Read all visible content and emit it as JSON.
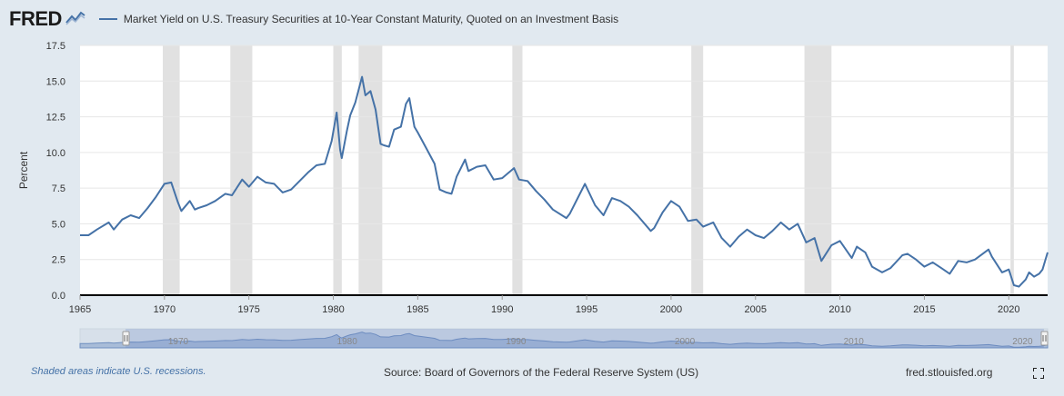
{
  "header": {
    "logo_text": "FRED",
    "legend_label": "Market Yield on U.S. Treasury Securities at 10-Year Constant Maturity, Quoted on an Investment Basis"
  },
  "footer": {
    "recession_note": "Shaded areas indicate U.S. recessions.",
    "source": "Source: Board of Governors of the Federal Reserve System (US)",
    "site": "fred.stlouisfed.org"
  },
  "colors": {
    "series": "#4572a7",
    "recession": "#e1e1e1",
    "background": "#e1e9f0",
    "plot_bg": "#ffffff",
    "navigator_fill": "#a8bcd8"
  },
  "icons": [
    "fred-graph-icon",
    "fullscreen-icon",
    "navigator-handle-icon"
  ],
  "chart_data": {
    "type": "line",
    "title": "Market Yield on U.S. Treasury Securities at 10-Year Constant Maturity, Quoted on an Investment Basis",
    "xlabel": "",
    "ylabel": "Percent",
    "xlim": [
      1965,
      2022.3
    ],
    "ylim": [
      0,
      17.5
    ],
    "x_ticks": [
      1965,
      1970,
      1975,
      1980,
      1985,
      1990,
      1995,
      2000,
      2005,
      2010,
      2015,
      2020
    ],
    "y_ticks": [
      "0.0",
      "2.5",
      "5.0",
      "7.5",
      "10.0",
      "12.5",
      "15.0",
      "17.5"
    ],
    "recessions": [
      [
        1969.9,
        1970.9
      ],
      [
        1973.9,
        1975.2
      ],
      [
        1980.0,
        1980.5
      ],
      [
        1981.5,
        1982.9
      ],
      [
        1990.6,
        1991.2
      ],
      [
        2001.2,
        2001.9
      ],
      [
        2007.9,
        2009.5
      ],
      [
        2020.1,
        2020.3
      ]
    ],
    "navigator_labels": [
      "1970",
      "1980",
      "1990",
      "2000",
      "2010",
      "2020"
    ],
    "series": [
      {
        "name": "Market Yield on U.S. Treasury Securities at 10-Year Constant Maturity, Quoted on an Investment Basis",
        "x": [
          1965.0,
          1965.5,
          1966.0,
          1966.7,
          1967.0,
          1967.5,
          1968.0,
          1968.5,
          1969.0,
          1969.5,
          1970.0,
          1970.4,
          1970.8,
          1971.0,
          1971.5,
          1971.8,
          1972.0,
          1972.5,
          1973.0,
          1973.6,
          1974.0,
          1974.6,
          1975.0,
          1975.5,
          1976.0,
          1976.5,
          1977.0,
          1977.5,
          1978.0,
          1978.5,
          1979.0,
          1979.5,
          1979.9,
          1980.2,
          1980.4,
          1980.5,
          1980.8,
          1981.0,
          1981.3,
          1981.7,
          1981.9,
          1982.2,
          1982.5,
          1982.8,
          1983.0,
          1983.3,
          1983.6,
          1984.0,
          1984.3,
          1984.5,
          1984.8,
          1985.0,
          1985.5,
          1986.0,
          1986.3,
          1986.7,
          1987.0,
          1987.3,
          1987.8,
          1988.0,
          1988.5,
          1989.0,
          1989.5,
          1990.0,
          1990.7,
          1991.0,
          1991.5,
          1992.0,
          1992.5,
          1993.0,
          1993.8,
          1994.0,
          1994.9,
          1995.5,
          1996.0,
          1996.5,
          1997.0,
          1997.5,
          1998.0,
          1998.8,
          1999.0,
          1999.5,
          2000.0,
          2000.5,
          2001.0,
          2001.5,
          2001.9,
          2002.5,
          2003.0,
          2003.5,
          2004.0,
          2004.5,
          2005.0,
          2005.5,
          2006.0,
          2006.5,
          2007.0,
          2007.5,
          2008.0,
          2008.5,
          2008.9,
          2009.5,
          2010.0,
          2010.7,
          2011.0,
          2011.5,
          2011.9,
          2012.5,
          2013.0,
          2013.7,
          2014.0,
          2014.5,
          2015.0,
          2015.5,
          2016.0,
          2016.5,
          2017.0,
          2017.5,
          2018.0,
          2018.8,
          2019.0,
          2019.6,
          2020.0,
          2020.3,
          2020.6,
          2021.0,
          2021.2,
          2021.5,
          2021.8,
          2022.0,
          2022.3
        ],
        "y": [
          4.2,
          4.2,
          4.6,
          5.1,
          4.6,
          5.3,
          5.6,
          5.4,
          6.1,
          6.9,
          7.8,
          7.9,
          6.5,
          5.9,
          6.6,
          6.0,
          6.1,
          6.3,
          6.6,
          7.1,
          7.0,
          8.1,
          7.6,
          8.3,
          7.9,
          7.8,
          7.2,
          7.4,
          8.0,
          8.6,
          9.1,
          9.2,
          10.8,
          12.8,
          10.2,
          9.6,
          11.5,
          12.6,
          13.5,
          15.3,
          14.0,
          14.3,
          13.0,
          10.6,
          10.5,
          10.4,
          11.6,
          11.8,
          13.4,
          13.8,
          11.8,
          11.4,
          10.3,
          9.2,
          7.4,
          7.2,
          7.1,
          8.3,
          9.5,
          8.7,
          9.0,
          9.1,
          8.1,
          8.2,
          8.9,
          8.1,
          8.0,
          7.3,
          6.7,
          6.0,
          5.4,
          5.7,
          7.8,
          6.3,
          5.6,
          6.8,
          6.6,
          6.2,
          5.6,
          4.5,
          4.7,
          5.8,
          6.6,
          6.2,
          5.2,
          5.3,
          4.8,
          5.1,
          4.0,
          3.4,
          4.1,
          4.6,
          4.2,
          4.0,
          4.5,
          5.1,
          4.6,
          5.0,
          3.7,
          4.0,
          2.4,
          3.5,
          3.8,
          2.6,
          3.4,
          3.0,
          2.0,
          1.6,
          1.9,
          2.8,
          2.9,
          2.5,
          2.0,
          2.3,
          1.9,
          1.5,
          2.4,
          2.3,
          2.5,
          3.2,
          2.7,
          1.6,
          1.8,
          0.7,
          0.6,
          1.1,
          1.6,
          1.3,
          1.5,
          1.8,
          3.0
        ]
      }
    ]
  }
}
